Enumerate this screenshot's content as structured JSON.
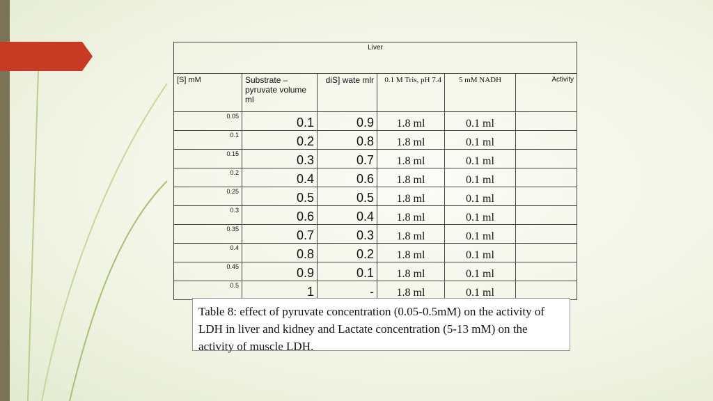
{
  "table": {
    "title": "Liver",
    "headers": [
      "[S] mM",
      "Substrate – pyruvate volume ml",
      "diS]  wate mlr",
      "0.1 M Tris, pH 7.4",
      "5 mM NADH",
      "Activity"
    ],
    "rows": [
      [
        "0.05",
        "0.1",
        "0.9",
        "1.8 ml",
        "0.1 ml"
      ],
      [
        "0.1",
        "0.2",
        "0.8",
        "1.8 ml",
        "0.1 ml"
      ],
      [
        "0.15",
        "0.3",
        "0.7",
        "1.8 ml",
        "0.1 ml"
      ],
      [
        "0.2",
        "0.4",
        "0.6",
        "1.8 ml",
        "0.1 ml"
      ],
      [
        "0.25",
        "0.5",
        "0.5",
        "1.8 ml",
        "0.1 ml"
      ],
      [
        "0.3",
        "0.6",
        "0.4",
        "1.8 ml",
        "0.1 ml"
      ],
      [
        "0.35",
        "0.7",
        "0.3",
        "1.8 ml",
        "0.1 ml"
      ],
      [
        "0.4",
        "0.8",
        "0.2",
        "1.8 ml",
        "0.1 ml"
      ],
      [
        "0.45",
        "0.9",
        "0.1",
        "1.8 ml",
        "0.1 ml"
      ],
      [
        "0.5",
        "1",
        "-",
        "1.8 ml",
        "0.1 ml"
      ]
    ]
  },
  "caption": "Table 8: effect of pyruvate concentration (0.05-0.5mM) on the activity of LDH in liver and kidney and Lactate concentration (5-13 mM) on  the activity of muscle LDH."
}
